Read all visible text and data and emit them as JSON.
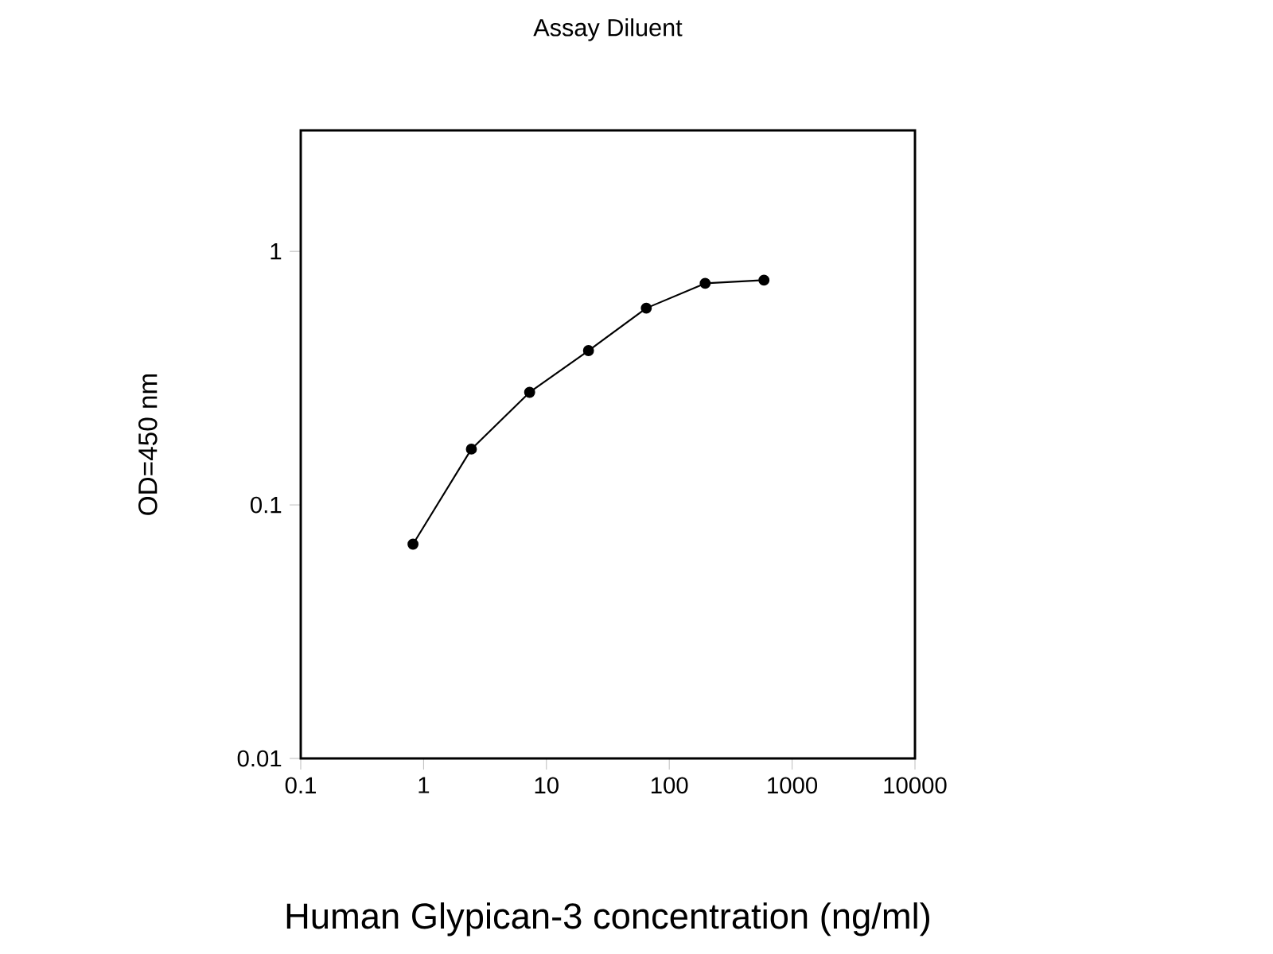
{
  "chart_data": {
    "type": "line",
    "title": "Assay Diluent",
    "xlabel": "Human Glypican-3 concentration (ng/ml)",
    "ylabel": "OD=450 nm",
    "x": [
      0.82,
      2.45,
      7.3,
      22,
      65,
      196,
      590
    ],
    "values": [
      0.07,
      0.166,
      0.278,
      0.406,
      0.597,
      0.748,
      0.77
    ],
    "color": "#000000",
    "marker": "circle",
    "line_style": "solid",
    "log": "xy",
    "grid": false,
    "xlim": [
      0.1,
      10000
    ],
    "ylim": [
      0.01,
      3
    ],
    "xticks": [
      0.1,
      1,
      10,
      100,
      1000,
      10000
    ],
    "yticks": [
      0.01,
      0.1,
      1
    ]
  }
}
